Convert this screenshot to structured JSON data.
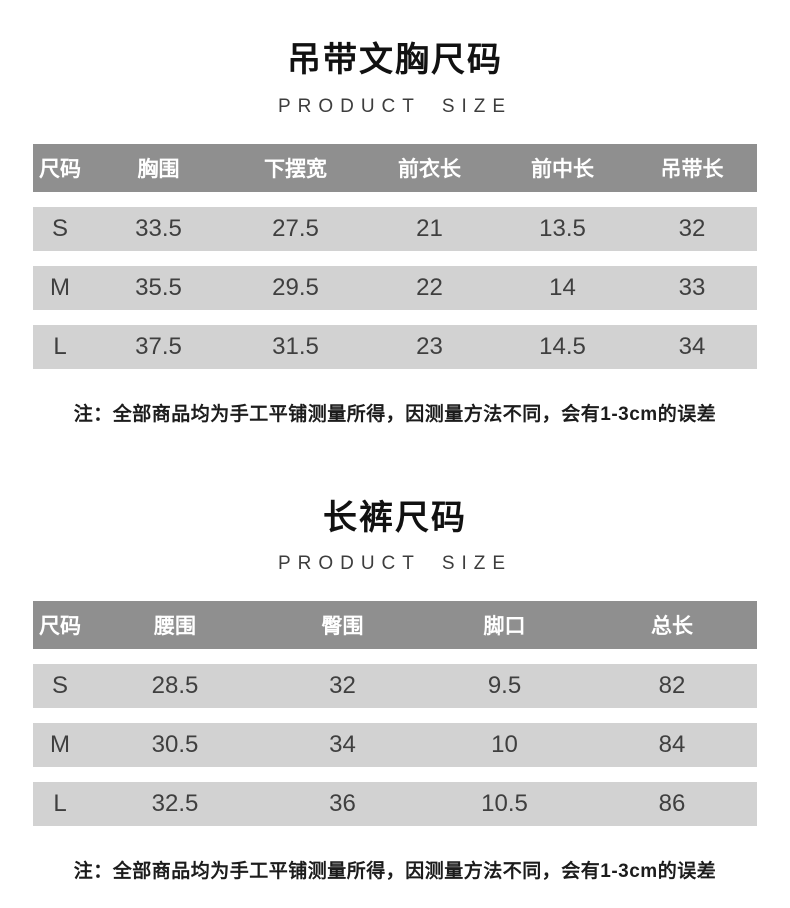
{
  "colors": {
    "table_header_bg": "#8f8f8f",
    "table_header_text": "#ffffff",
    "table_row_bg": "#d2d2d2",
    "table_cell_text": "#3f3f3f",
    "title_text": "#111111",
    "note_text": "#1c1c1c"
  },
  "sections": [
    {
      "title": "吊带文胸尺码",
      "subtitle": "PRODUCT SIZE",
      "table": {
        "headers": [
          "尺码",
          "胸围",
          "下摆宽",
          "前衣长",
          "前中长",
          "吊带长"
        ],
        "rows": [
          [
            "S",
            "33.5",
            "27.5",
            "21",
            "13.5",
            "32"
          ],
          [
            "M",
            "35.5",
            "29.5",
            "22",
            "14",
            "33"
          ],
          [
            "L",
            "37.5",
            "31.5",
            "23",
            "14.5",
            "34"
          ]
        ]
      },
      "note": "注：全部商品均为手工平铺测量所得，因测量方法不同，会有1-3cm的误差"
    },
    {
      "title": "长裤尺码",
      "subtitle": "PRODUCT SIZE",
      "table": {
        "headers": [
          "尺码",
          "腰围",
          "臀围",
          "脚口",
          "总长"
        ],
        "rows": [
          [
            "S",
            "28.5",
            "32",
            "9.5",
            "82"
          ],
          [
            "M",
            "30.5",
            "34",
            "10",
            "84"
          ],
          [
            "L",
            "32.5",
            "36",
            "10.5",
            "86"
          ]
        ]
      },
      "note": "注：全部商品均为手工平铺测量所得，因测量方法不同，会有1-3cm的误差"
    }
  ]
}
